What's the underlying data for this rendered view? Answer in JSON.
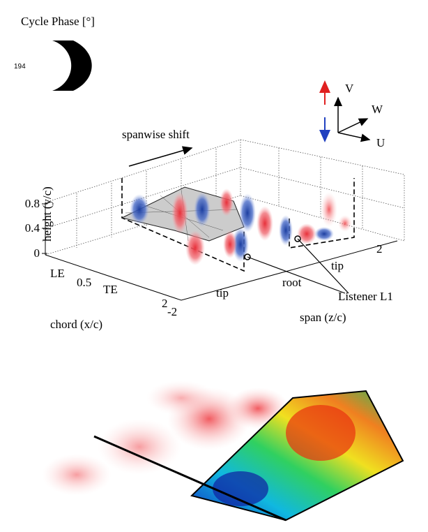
{
  "header": {
    "title": "Cycle Phase [°]",
    "phase": "194"
  },
  "vectors": {
    "v": "V",
    "w": "W",
    "u": "U"
  },
  "plot": {
    "shift_label": "spanwise shift",
    "y_label": "height (y/c)",
    "y_ticks": [
      "0.8",
      "0.4",
      "0"
    ],
    "x_label": "chord (x/c)",
    "x_ticks": [
      "LE",
      "0.5",
      "TE",
      "2"
    ],
    "z_label": "span (z/c)",
    "z_ticks": [
      "-2",
      "tip",
      "root",
      "tip",
      "2"
    ],
    "listener": "Listener L1"
  }
}
